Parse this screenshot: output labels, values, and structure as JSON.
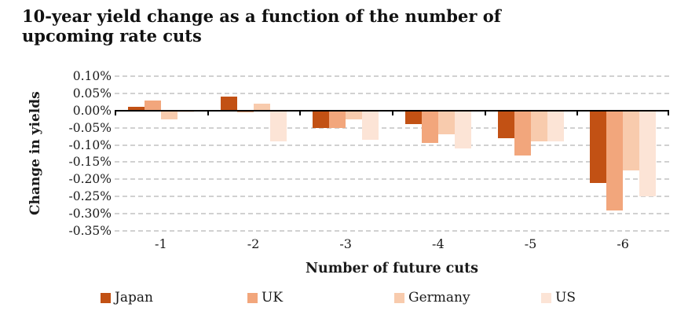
{
  "chart_data": {
    "type": "bar",
    "title": "10-year yield change as a function of the number of upcoming rate cuts",
    "xlabel": "Number of future cuts",
    "ylabel": "Change in yields",
    "categories": [
      "-1",
      "-2",
      "-3",
      "-4",
      "-5",
      "-6"
    ],
    "series": [
      {
        "name": "Japan",
        "color": "#c25114",
        "values": [
          0.01,
          0.04,
          -0.05,
          -0.04,
          -0.08,
          -0.21
        ]
      },
      {
        "name": "UK",
        "color": "#f2a67c",
        "values": [
          0.03,
          -0.005,
          -0.05,
          -0.095,
          -0.13,
          -0.29
        ]
      },
      {
        "name": "Germany",
        "color": "#f8cbad",
        "values": [
          -0.025,
          0.02,
          -0.025,
          -0.07,
          -0.09,
          -0.175
        ]
      },
      {
        "name": "US",
        "color": "#fce4d6",
        "values": [
          -0.005,
          -0.09,
          -0.085,
          -0.11,
          -0.09,
          -0.25
        ]
      }
    ],
    "y_tick_labels": [
      "0.10%",
      "0.05%",
      "0.00%",
      "-0.05%",
      "-0.10%",
      "-0.15%",
      "-0.20%",
      "-0.25%",
      "-0.30%",
      "-0.35%"
    ],
    "y_tick_values": [
      0.1,
      0.05,
      0.0,
      -0.05,
      -0.1,
      -0.15,
      -0.2,
      -0.25,
      -0.3,
      -0.35
    ],
    "ylim": [
      -0.35,
      0.1
    ],
    "grid": "horizontal-dashed",
    "legend_position": "bottom"
  },
  "colors": {
    "axis": "#000000",
    "gridline": "#d1d1d1",
    "text": "#1a1a1a",
    "background": "#ffffff"
  }
}
